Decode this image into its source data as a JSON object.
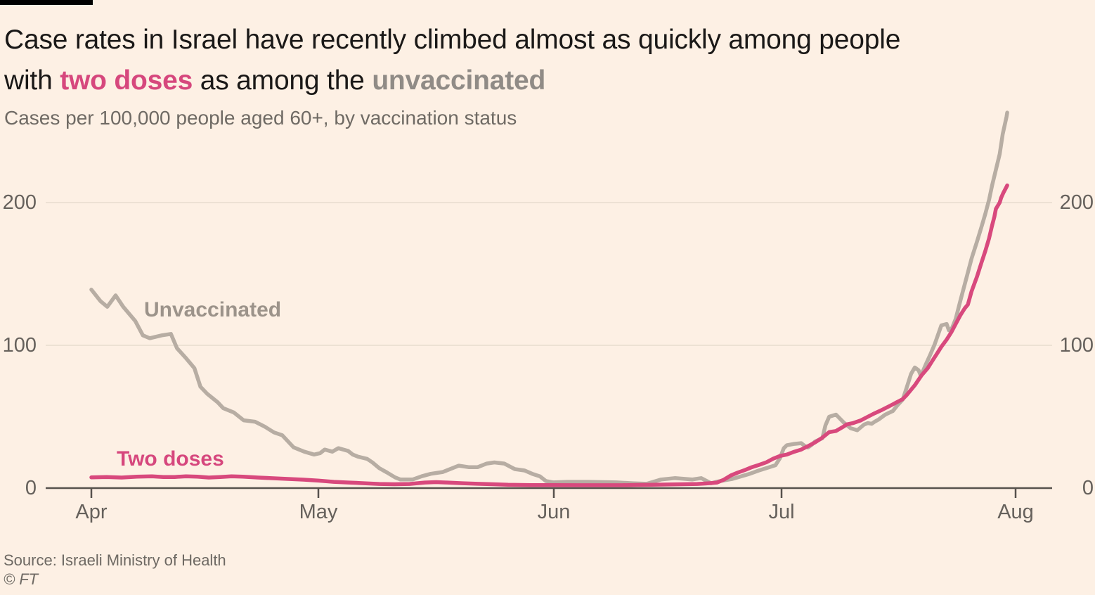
{
  "header": {
    "title_line1": "Case rates in Israel have recently climbed almost as quickly among people",
    "title_line2_prefix": "with ",
    "title_line2_pink": "two doses",
    "title_line2_middle": " as among the ",
    "title_line2_gray": "unvaccinated",
    "subtitle": "Cases per 100,000 people aged 60+, by vaccination status"
  },
  "chart_data": {
    "type": "line",
    "title": "Case rates in Israel have recently climbed almost as quickly among people with two doses as among the unvaccinated",
    "subtitle": "Cases per 100,000 people aged 60+, by vaccination status",
    "xlabel": "",
    "ylabel": "Cases per 100,000 people aged 60+",
    "x_axis": {
      "tick_labels": [
        "Apr",
        "May",
        "Jun",
        "Jul",
        "Aug"
      ],
      "tick_days": [
        0,
        30,
        61,
        91,
        122
      ],
      "range_days": [
        0,
        122
      ]
    },
    "y_axis": {
      "tick_labels": [
        "0",
        "100",
        "200"
      ],
      "ticks": [
        0,
        100,
        200
      ],
      "range": [
        0,
        265
      ],
      "grid": true,
      "labels_both_sides": true
    },
    "legend_position": "inline-annotations",
    "series": [
      {
        "name": "Unvaccinated",
        "color": "#b7ada3",
        "label_color": "#9c938a",
        "points": [
          [
            0,
            139
          ],
          [
            1.2,
            131
          ],
          [
            2.1,
            127
          ],
          [
            3.2,
            135
          ],
          [
            4.2,
            127
          ],
          [
            5.8,
            117
          ],
          [
            6.8,
            107
          ],
          [
            7.7,
            105
          ],
          [
            9.3,
            107
          ],
          [
            10.5,
            108
          ],
          [
            11.3,
            98
          ],
          [
            12.5,
            91
          ],
          [
            13.6,
            84
          ],
          [
            14.4,
            71
          ],
          [
            15.3,
            66
          ],
          [
            16.7,
            60
          ],
          [
            17.4,
            56
          ],
          [
            18.8,
            53
          ],
          [
            20.1,
            47.5
          ],
          [
            21.6,
            46.5
          ],
          [
            22.9,
            43
          ],
          [
            24.1,
            39
          ],
          [
            25.2,
            37
          ],
          [
            26.7,
            28.5
          ],
          [
            28.1,
            25.5
          ],
          [
            29.4,
            23.5
          ],
          [
            30.2,
            24.5
          ],
          [
            30.8,
            27
          ],
          [
            31.8,
            25.5
          ],
          [
            32.6,
            28
          ],
          [
            33.9,
            26
          ],
          [
            34.5,
            23.5
          ],
          [
            35.2,
            22
          ],
          [
            36.4,
            20.5
          ],
          [
            37.1,
            18
          ],
          [
            38,
            14
          ],
          [
            39,
            11
          ],
          [
            40.1,
            7.5
          ],
          [
            40.8,
            6
          ],
          [
            42.4,
            6
          ],
          [
            43.6,
            8.3
          ],
          [
            44.8,
            10
          ],
          [
            46.4,
            11.3
          ],
          [
            48,
            14.7
          ],
          [
            48.5,
            15.7
          ],
          [
            49.8,
            14.7
          ],
          [
            51,
            14.7
          ],
          [
            52.2,
            17.2
          ],
          [
            53.2,
            18
          ],
          [
            54.5,
            17.2
          ],
          [
            55.4,
            14.7
          ],
          [
            55.9,
            13.3
          ],
          [
            57.2,
            12.3
          ],
          [
            58.2,
            10
          ],
          [
            59.2,
            8.3
          ],
          [
            60,
            5
          ],
          [
            61,
            4
          ],
          [
            62.8,
            4.4
          ],
          [
            65.6,
            4.4
          ],
          [
            69.3,
            4
          ],
          [
            71.4,
            3.4
          ],
          [
            73.3,
            3
          ],
          [
            75.2,
            6
          ],
          [
            77,
            7
          ],
          [
            79.3,
            6
          ],
          [
            80.5,
            7
          ],
          [
            81.8,
            3.4
          ],
          [
            82.5,
            4.4
          ],
          [
            83.5,
            5.4
          ],
          [
            84.6,
            6.4
          ],
          [
            85.8,
            8.3
          ],
          [
            86.9,
            10
          ],
          [
            88.1,
            12.3
          ],
          [
            89.1,
            14
          ],
          [
            90.3,
            16
          ],
          [
            90.9,
            21
          ],
          [
            91.4,
            28
          ],
          [
            91.8,
            30
          ],
          [
            92.8,
            31
          ],
          [
            93.7,
            31.5
          ],
          [
            94.2,
            29.4
          ],
          [
            94.6,
            28.4
          ],
          [
            95.1,
            30.4
          ],
          [
            95.5,
            32.5
          ],
          [
            96.5,
            35
          ],
          [
            96.9,
            44
          ],
          [
            97.4,
            50
          ],
          [
            98.3,
            51.5
          ],
          [
            99.3,
            46
          ],
          [
            100.2,
            42
          ],
          [
            101.1,
            40.5
          ],
          [
            102,
            44.5
          ],
          [
            102.5,
            45.5
          ],
          [
            103,
            45
          ],
          [
            103.4,
            46.5
          ],
          [
            103.9,
            48
          ],
          [
            104.8,
            51.5
          ],
          [
            105.8,
            54
          ],
          [
            106.4,
            58
          ],
          [
            107.1,
            62
          ],
          [
            107.6,
            70
          ],
          [
            108.2,
            80
          ],
          [
            108.7,
            84.5
          ],
          [
            109.2,
            82.5
          ],
          [
            109.5,
            78.5
          ],
          [
            110.1,
            86
          ],
          [
            110.7,
            93
          ],
          [
            111.3,
            100.5
          ],
          [
            112.2,
            114
          ],
          [
            112.9,
            115
          ],
          [
            113.2,
            110.5
          ],
          [
            113.6,
            112
          ],
          [
            114.1,
            118.5
          ],
          [
            114.7,
            131
          ],
          [
            115.3,
            143
          ],
          [
            115.8,
            153
          ],
          [
            116.2,
            161
          ],
          [
            116.9,
            172.5
          ],
          [
            117.5,
            183
          ],
          [
            118,
            192
          ],
          [
            118.5,
            202
          ],
          [
            118.9,
            212
          ],
          [
            119.4,
            223
          ],
          [
            119.9,
            234
          ],
          [
            120.3,
            248
          ],
          [
            120.8,
            260
          ],
          [
            120.9,
            263
          ]
        ]
      },
      {
        "name": "Two doses",
        "color": "#d8497d",
        "label_color": "#d6477d",
        "points": [
          [
            0,
            7.5
          ],
          [
            2,
            7.8
          ],
          [
            4,
            7.4
          ],
          [
            6,
            8
          ],
          [
            8,
            8.3
          ],
          [
            9.5,
            7.8
          ],
          [
            11,
            7.8
          ],
          [
            12.5,
            8.3
          ],
          [
            14,
            8
          ],
          [
            15.5,
            7.4
          ],
          [
            17,
            7.8
          ],
          [
            18.5,
            8.3
          ],
          [
            20,
            8
          ],
          [
            22,
            7.4
          ],
          [
            24,
            6.9
          ],
          [
            26,
            6.4
          ],
          [
            28,
            5.9
          ],
          [
            30,
            5.2
          ],
          [
            32,
            4.4
          ],
          [
            34,
            3.9
          ],
          [
            36,
            3.4
          ],
          [
            38,
            2.9
          ],
          [
            40,
            2.7
          ],
          [
            42,
            2.9
          ],
          [
            44,
            3.9
          ],
          [
            45.5,
            4.2
          ],
          [
            47,
            3.9
          ],
          [
            49,
            3.4
          ],
          [
            51,
            3
          ],
          [
            53,
            2.7
          ],
          [
            55,
            2.3
          ],
          [
            58,
            2.1
          ],
          [
            61,
            2.1
          ],
          [
            64,
            2
          ],
          [
            67,
            2
          ],
          [
            70,
            2
          ],
          [
            72,
            2.2
          ],
          [
            74,
            2.3
          ],
          [
            76,
            2.5
          ],
          [
            78,
            2.7
          ],
          [
            80,
            2.9
          ],
          [
            81,
            3.2
          ],
          [
            82,
            3.6
          ],
          [
            82.6,
            3.9
          ],
          [
            83.5,
            5.9
          ],
          [
            84.4,
            8.8
          ],
          [
            85.3,
            10.8
          ],
          [
            86.3,
            12.7
          ],
          [
            87.2,
            14.7
          ],
          [
            88.1,
            16.2
          ],
          [
            89.1,
            18.1
          ],
          [
            90,
            20.6
          ],
          [
            90.9,
            22.5
          ],
          [
            91.8,
            23.5
          ],
          [
            92.8,
            25.5
          ],
          [
            93.7,
            27
          ],
          [
            94.6,
            29.4
          ],
          [
            95.5,
            31.9
          ],
          [
            96.5,
            35.3
          ],
          [
            97.4,
            39.2
          ],
          [
            98.3,
            40
          ],
          [
            99.3,
            43.1
          ],
          [
            99.7,
            44.6
          ],
          [
            100.6,
            45.6
          ],
          [
            101.6,
            47.5
          ],
          [
            102.5,
            50
          ],
          [
            103.4,
            52.4
          ],
          [
            104.4,
            54.9
          ],
          [
            105.3,
            57.3
          ],
          [
            106.2,
            59.8
          ],
          [
            107.1,
            62.3
          ],
          [
            107.6,
            65
          ],
          [
            108.7,
            72
          ],
          [
            109.6,
            79
          ],
          [
            110.4,
            84
          ],
          [
            111,
            89
          ],
          [
            111.6,
            94
          ],
          [
            112.2,
            99
          ],
          [
            112.9,
            104
          ],
          [
            113.5,
            109
          ],
          [
            114.1,
            115
          ],
          [
            114.7,
            121
          ],
          [
            115.3,
            126
          ],
          [
            115.7,
            128.5
          ],
          [
            116.2,
            138
          ],
          [
            116.9,
            148
          ],
          [
            117.5,
            158
          ],
          [
            118,
            166
          ],
          [
            118.5,
            175
          ],
          [
            118.9,
            184
          ],
          [
            119.2,
            190
          ],
          [
            119.4,
            195.6
          ],
          [
            119.9,
            200
          ],
          [
            120.1,
            203.4
          ],
          [
            120.4,
            207
          ],
          [
            120.8,
            211
          ],
          [
            120.9,
            212
          ]
        ]
      }
    ]
  },
  "footer": {
    "source": "Source: Israeli Ministry of Health",
    "copyright": "© FT"
  },
  "colors": {
    "background": "#fdf0e4",
    "title_text": "#1a1817",
    "pink_accent": "#d6477d",
    "pink_line": "#d8497d",
    "gray_line": "#b7ada3",
    "gray_label": "#9c938a",
    "axis_text": "#66615c",
    "axis_line": "#57524d",
    "gridline": "#e8dccf",
    "brand_bar": "#000000"
  }
}
